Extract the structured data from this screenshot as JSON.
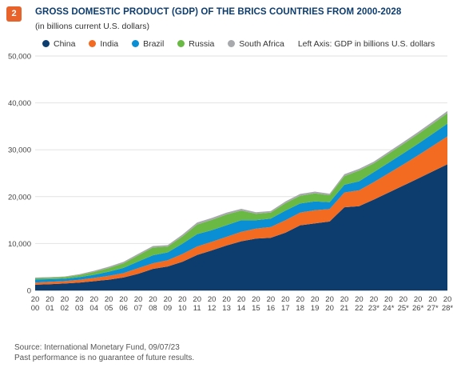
{
  "badge": "2",
  "title": "GROSS DOMESTIC PRODUCT (GDP) OF THE BRICS COUNTRIES FROM 2000-2028",
  "subtitle": "(in billions current U.S. dollars)",
  "axis_note": "Left Axis: GDP in billions U.S. dollars",
  "source": "Source: International Monetary Fund, 09/07/23",
  "disclaimer": "Past performance is no guarantee of future results.",
  "chart_data": {
    "type": "area",
    "stacked": true,
    "x_tick_labels": [
      [
        "20",
        "00"
      ],
      [
        "20",
        "01"
      ],
      [
        "20",
        "02"
      ],
      [
        "20",
        "03"
      ],
      [
        "20",
        "04"
      ],
      [
        "20",
        "05"
      ],
      [
        "20",
        "06"
      ],
      [
        "20",
        "07"
      ],
      [
        "20",
        "08"
      ],
      [
        "20",
        "09"
      ],
      [
        "20",
        "10"
      ],
      [
        "20",
        "11"
      ],
      [
        "20",
        "12"
      ],
      [
        "20",
        "13"
      ],
      [
        "20",
        "14"
      ],
      [
        "20",
        "15"
      ],
      [
        "20",
        "16"
      ],
      [
        "20",
        "17"
      ],
      [
        "20",
        "18"
      ],
      [
        "20",
        "19"
      ],
      [
        "20",
        "20"
      ],
      [
        "20",
        "21"
      ],
      [
        "20",
        "22"
      ],
      [
        "20",
        "23*"
      ],
      [
        "20",
        "24*"
      ],
      [
        "20",
        "25*"
      ],
      [
        "20",
        "26*"
      ],
      [
        "20",
        "27*"
      ],
      [
        "20",
        "28*"
      ]
    ],
    "ylim": [
      0,
      50000
    ],
    "y_ticks": [
      0,
      10000,
      20000,
      30000,
      40000,
      50000
    ],
    "y_tick_labels": [
      "0",
      "10,000",
      "20,000",
      "30,000",
      "40,000",
      "50,000"
    ],
    "grid": "horizontal",
    "legend_position": "top",
    "series": [
      {
        "name": "China",
        "color": "#0d3c6e",
        "values": [
          1211,
          1339,
          1471,
          1660,
          1955,
          2286,
          2752,
          3550,
          4594,
          5102,
          6087,
          7552,
          8532,
          9570,
          10476,
          11062,
          11233,
          12310,
          13894,
          14280,
          14688,
          17734,
          17963,
          19374,
          20874,
          22358,
          23835,
          25395,
          26902
        ]
      },
      {
        "name": "India",
        "color": "#f26b21",
        "values": [
          468,
          485,
          515,
          608,
          710,
          820,
          940,
          1217,
          1199,
          1342,
          1676,
          1823,
          1828,
          1857,
          2039,
          2104,
          2295,
          2652,
          2713,
          2835,
          2672,
          3150,
          3386,
          3737,
          4106,
          4505,
          4951,
          5425,
          5950
        ]
      },
      {
        "name": "Brazil",
        "color": "#0a8fd4",
        "values": [
          655,
          559,
          507,
          558,
          669,
          892,
          1107,
          1397,
          1696,
          1667,
          2209,
          2616,
          2465,
          2473,
          2456,
          1802,
          1796,
          2064,
          1917,
          1873,
          1448,
          1650,
          1924,
          2127,
          2234,
          2344,
          2461,
          2587,
          2716
        ]
      },
      {
        "name": "Russia",
        "color": "#6ab945",
        "values": [
          260,
          307,
          345,
          430,
          591,
          764,
          990,
          1300,
          1661,
          1223,
          1525,
          2046,
          2208,
          2293,
          2059,
          1363,
          1277,
          1575,
          1657,
          1693,
          1493,
          1837,
          2266,
          1862,
          1948,
          2012,
          2078,
          2143,
          2208
        ]
      },
      {
        "name": "South Africa",
        "color": "#a7a9ac",
        "values": [
          152,
          136,
          129,
          198,
          256,
          288,
          304,
          333,
          316,
          330,
          417,
          458,
          434,
          400,
          381,
          347,
          323,
          381,
          404,
          388,
          338,
          420,
          405,
          381,
          403,
          420,
          440,
          461,
          482
        ]
      }
    ]
  }
}
